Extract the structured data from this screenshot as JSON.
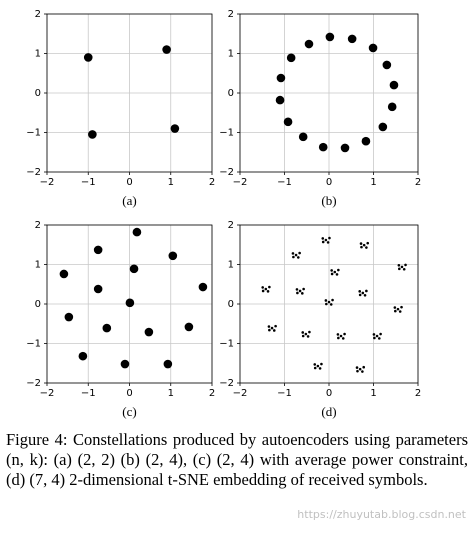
{
  "chart_data": [
    {
      "type": "scatter",
      "label": "(a)",
      "color": "#000000",
      "grid": true,
      "x": [
        -1.0,
        0.9,
        -0.9,
        1.1
      ],
      "y": [
        0.9,
        1.1,
        -1.05,
        -0.9
      ],
      "xlim": [
        -2,
        2
      ],
      "ylim": [
        -2,
        2
      ],
      "xticks": [
        {
          "value": -2,
          "label": "−2"
        },
        {
          "value": -1,
          "label": "−1"
        },
        0,
        1,
        2
      ],
      "yticks": [
        {
          "value": -2,
          "label": "−2"
        },
        {
          "value": -1,
          "label": "−1"
        },
        0,
        1,
        2
      ]
    },
    {
      "type": "scatter",
      "label": "(b)",
      "color": "#000000",
      "grid": true,
      "x": [
        0.02,
        0.52,
        0.99,
        1.3,
        1.46,
        1.42,
        1.21,
        0.83,
        0.36,
        -0.13,
        -0.58,
        -0.92,
        -1.1,
        -1.08,
        -0.85,
        -0.45
      ],
      "y": [
        1.42,
        1.37,
        1.14,
        0.71,
        0.2,
        -0.35,
        -0.86,
        -1.22,
        -1.39,
        -1.37,
        -1.11,
        -0.73,
        -0.18,
        0.38,
        0.89,
        1.24
      ],
      "xlim": [
        -2,
        2
      ],
      "ylim": [
        -2,
        2
      ],
      "xticks": [
        {
          "value": -2,
          "label": "−2"
        },
        {
          "value": -1,
          "label": "−1"
        },
        0,
        1,
        2
      ],
      "yticks": [
        {
          "value": -2,
          "label": "−2"
        },
        {
          "value": -1,
          "label": "−1"
        },
        0,
        1,
        2
      ]
    },
    {
      "type": "scatter",
      "label": "(c)",
      "color": "#000000",
      "grid": true,
      "x": [
        0.18,
        -0.76,
        -1.59,
        1.05,
        0.11,
        -0.76,
        1.78,
        -1.47,
        0.01,
        -0.55,
        0.47,
        1.44,
        -1.13,
        -0.11,
        0.93
      ],
      "y": [
        1.82,
        1.37,
        0.76,
        1.22,
        0.89,
        0.38,
        0.43,
        -0.33,
        0.03,
        -0.61,
        -0.71,
        -0.58,
        -1.32,
        -1.52,
        -1.52
      ],
      "xlim": [
        -2,
        2
      ],
      "ylim": [
        -2,
        2
      ],
      "xticks": [
        {
          "value": -2,
          "label": "−2"
        },
        {
          "value": -1,
          "label": "−1"
        },
        0,
        1,
        2
      ],
      "yticks": [
        {
          "value": -2,
          "label": "−2"
        },
        {
          "value": -1,
          "label": "−1"
        },
        0,
        1,
        2
      ]
    },
    {
      "type": "scatter",
      "label": "(d)",
      "color": "#000000",
      "grid": true,
      "x": [
        -0.07,
        0.01,
        -0.14,
        -0.02,
        -0.13,
        0.79,
        0.87,
        0.72,
        0.84,
        0.73,
        -0.74,
        -0.66,
        -0.81,
        -0.69,
        -0.8,
        1.64,
        1.72,
        1.57,
        1.69,
        1.58,
        0.13,
        0.21,
        0.06,
        0.18,
        0.07,
        -1.42,
        -1.34,
        -1.49,
        -1.37,
        -1.48,
        -0.65,
        -0.57,
        -0.72,
        -0.6,
        -0.71,
        0.76,
        0.84,
        0.69,
        0.81,
        0.7,
        0,
        0.08,
        -0.07,
        0.05,
        -0.06,
        1.55,
        1.63,
        1.48,
        1.6,
        1.49,
        -1.28,
        -1.2,
        -1.35,
        -1.23,
        -1.34,
        -0.52,
        -0.44,
        -0.59,
        -0.47,
        -0.58,
        0.27,
        0.35,
        0.2,
        0.32,
        0.21,
        1.08,
        1.16,
        1.01,
        1.13,
        1.02,
        -0.25,
        -0.17,
        -0.32,
        -0.2,
        -0.31,
        0.7,
        0.78,
        0.63,
        0.75,
        0.64
      ],
      "y": [
        1.62,
        1.67,
        1.66,
        1.56,
        1.57,
        1.49,
        1.54,
        1.53,
        1.43,
        1.44,
        1.24,
        1.29,
        1.28,
        1.18,
        1.19,
        0.94,
        0.99,
        0.98,
        0.88,
        0.89,
        0.81,
        0.86,
        0.85,
        0.75,
        0.76,
        0.38,
        0.43,
        0.42,
        0.32,
        0.33,
        0.33,
        0.38,
        0.37,
        0.27,
        0.28,
        0.28,
        0.33,
        0.32,
        0.22,
        0.23,
        0.05,
        0.1,
        0.09,
        -0.01,
        0,
        -0.13,
        -0.08,
        -0.09,
        -0.19,
        -0.18,
        -0.61,
        -0.56,
        -0.57,
        -0.67,
        -0.66,
        -0.76,
        -0.71,
        -0.72,
        -0.82,
        -0.81,
        -0.81,
        -0.76,
        -0.77,
        -0.87,
        -0.86,
        -0.81,
        -0.76,
        -0.77,
        -0.87,
        -0.86,
        -1.57,
        -1.52,
        -1.53,
        -1.63,
        -1.62,
        -1.65,
        -1.6,
        -1.61,
        -1.71,
        -1.7
      ],
      "xlim": [
        -2,
        2
      ],
      "ylim": [
        -2,
        2
      ],
      "xticks": [
        {
          "value": -2,
          "label": "−2"
        },
        {
          "value": -1,
          "label": "−1"
        },
        0,
        1,
        2
      ],
      "yticks": [
        {
          "value": -2,
          "label": "−2"
        },
        {
          "value": -1,
          "label": "−1"
        },
        0,
        1,
        2
      ]
    }
  ],
  "caption": "Figure 4: Constellations produced by autoencoders using parameters (n, k): (a) (2, 2) (b) (2, 4), (c) (2, 4) with average power constraint, (d) (7, 4) 2-dimensional t-SNE embedding of received symbols.",
  "watermark": "https://zhuyutab.blog.csdn.net"
}
